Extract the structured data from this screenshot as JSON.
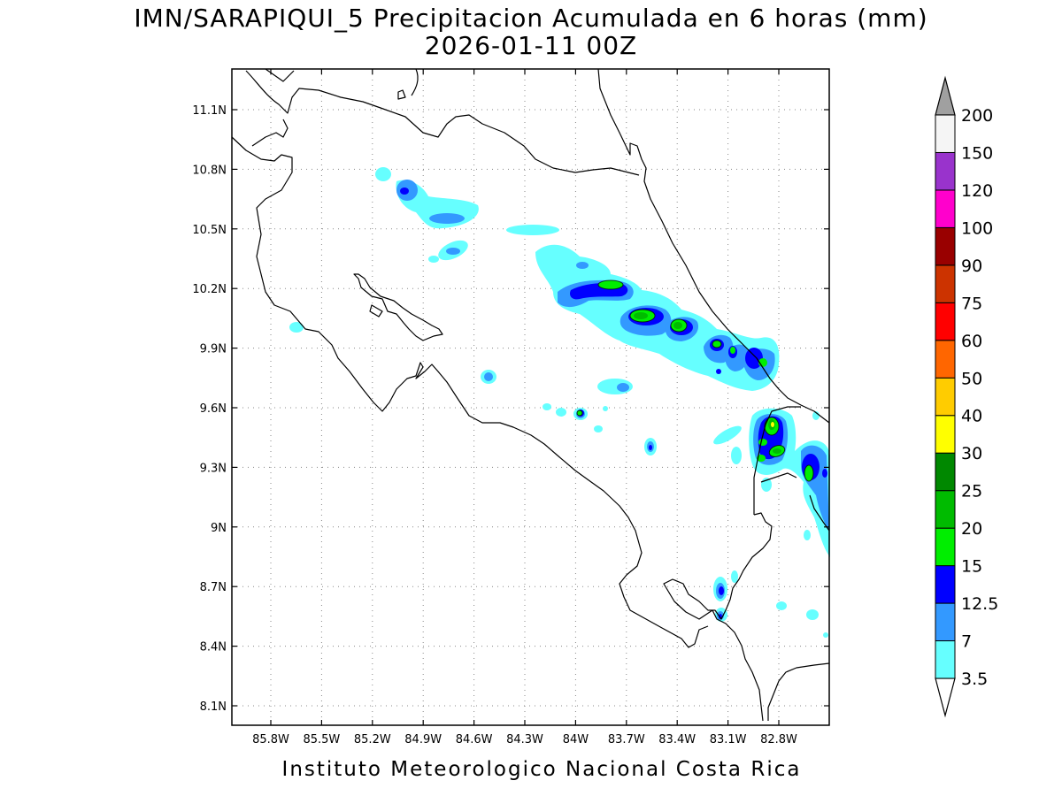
{
  "title_line1": "IMN/SARAPIQUI_5 Precipitacion Acumulada en 6 horas (mm)",
  "title_line2": "2026-01-11 00Z",
  "footer": "Instituto Meteorologico Nacional Costa Rica",
  "lon_labels": [
    "85.8W",
    "85.5W",
    "85.2W",
    "84.9W",
    "84.6W",
    "84.3W",
    "84W",
    "83.7W",
    "83.4W",
    "83.1W",
    "82.8W"
  ],
  "lat_labels": [
    "11.1N",
    "10.8N",
    "10.5N",
    "10.2N",
    "9.9N",
    "9.6N",
    "9.3N",
    "9N",
    "8.7N",
    "8.4N",
    "8.1N"
  ],
  "colorbar": {
    "levels": [
      "3.5",
      "7",
      "12.5",
      "15",
      "20",
      "25",
      "30",
      "40",
      "50",
      "60",
      "75",
      "90",
      "100",
      "120",
      "150",
      "200"
    ],
    "colors": [
      "#66ffff",
      "#3399ff",
      "#0000ff",
      "#00ee00",
      "#00bb00",
      "#008800",
      "#ffff00",
      "#ffcc00",
      "#ff6600",
      "#ff0000",
      "#cc3300",
      "#990000",
      "#ff00cc",
      "#9933cc",
      "#f5f5f5"
    ],
    "under_color": "#ffffff",
    "over_color": "#a0a0a0"
  }
}
